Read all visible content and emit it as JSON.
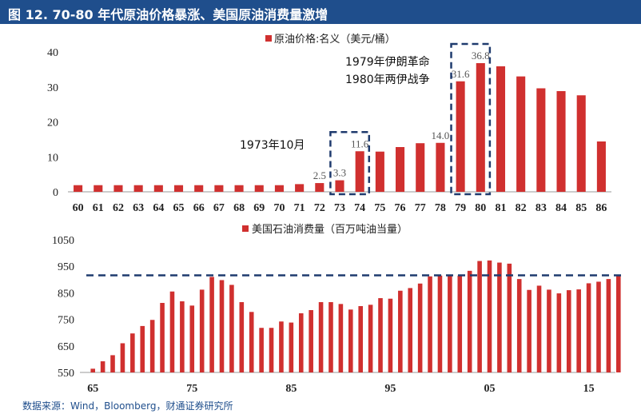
{
  "title": "图 12. 70-80 年代原油价格暴涨、美国原油消费量激增",
  "source": "数据来源：Wind，Bloomberg，财通证券研究所",
  "colors": {
    "bar": "#d0302f",
    "title_bg": "#1f4e8c",
    "dash": "#1f3b6e"
  },
  "chart_data": [
    {
      "type": "bar",
      "legend": "原油价格:名义（美元/桶）",
      "categories": [
        "60",
        "61",
        "62",
        "63",
        "64",
        "65",
        "66",
        "67",
        "68",
        "69",
        "70",
        "71",
        "72",
        "73",
        "74",
        "75",
        "76",
        "77",
        "78",
        "79",
        "80",
        "81",
        "82",
        "83",
        "84",
        "85",
        "86"
      ],
      "values": [
        1.9,
        1.9,
        1.9,
        1.9,
        1.9,
        1.9,
        1.9,
        1.9,
        1.9,
        1.9,
        1.9,
        2.2,
        2.5,
        3.3,
        11.6,
        11.5,
        12.8,
        13.9,
        14.0,
        31.6,
        36.8,
        35.9,
        33.0,
        29.6,
        28.8,
        27.6,
        14.4
      ],
      "data_labels": [
        {
          "index": 12,
          "text": "2.5"
        },
        {
          "index": 13,
          "text": "3.3"
        },
        {
          "index": 14,
          "text": "11.6"
        },
        {
          "index": 18,
          "text": "14.0"
        },
        {
          "index": 19,
          "text": "31.6"
        },
        {
          "index": 20,
          "text": "36.8"
        }
      ],
      "yticks": [
        "0",
        "10",
        "20",
        "30",
        "40"
      ],
      "ylim": [
        0,
        40
      ],
      "annotations": [
        "1973年10月",
        "1979年伊朗革命",
        "1980年两伊战争"
      ],
      "highlight_boxes": [
        [
          13,
          14
        ],
        [
          19,
          20
        ]
      ]
    },
    {
      "type": "bar",
      "legend": "美国石油消费量（百万吨油当量）",
      "x_start_year": 1965,
      "x_end_year": 2018,
      "values": [
        564,
        592,
        615,
        660,
        697,
        725,
        748,
        812,
        855,
        818,
        802,
        862,
        910,
        898,
        880,
        815,
        778,
        718,
        718,
        742,
        738,
        773,
        785,
        815,
        815,
        808,
        787,
        800,
        805,
        830,
        828,
        858,
        868,
        885,
        912,
        915,
        914,
        915,
        933,
        970,
        972,
        964,
        960,
        902,
        861,
        877,
        862,
        848,
        860,
        863,
        886,
        892,
        902,
        918
      ],
      "xtick_labels": [
        "65",
        "75",
        "85",
        "95",
        "05",
        "15"
      ],
      "yticks": [
        "550",
        "650",
        "750",
        "850",
        "950",
        "1050"
      ],
      "ylim": [
        550,
        1050
      ],
      "reference_line": 916
    }
  ]
}
